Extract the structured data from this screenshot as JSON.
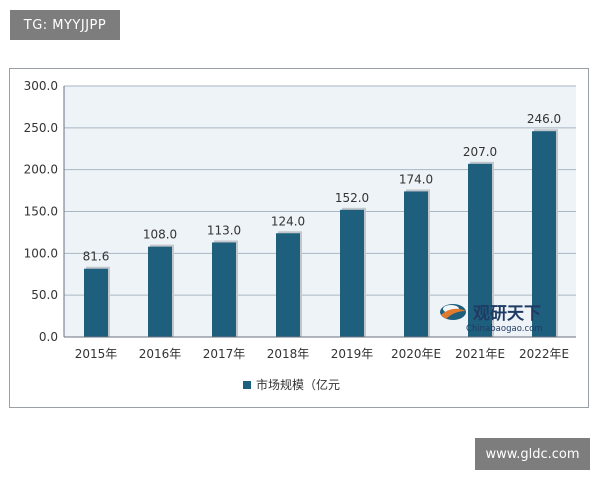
{
  "watermark_top": "TG: MYYJJPP",
  "watermark_bottom": "www.gldc.com",
  "logo": {
    "name": "观研天下",
    "url": "Chinabaogao.com"
  },
  "chart_data": {
    "type": "bar",
    "categories": [
      "2015年",
      "2016年",
      "2017年",
      "2018年",
      "2019年",
      "2020年E",
      "2021年E",
      "2022年E"
    ],
    "series": [
      {
        "name": "市场规模（亿元",
        "values": [
          81.6,
          108.0,
          113.0,
          124.0,
          152.0,
          174.0,
          207.0,
          246.0
        ]
      }
    ],
    "value_labels": [
      "81.6",
      "108.0",
      "113.0",
      "124.0",
      "152.0",
      "174.0",
      "207.0",
      "246.0"
    ],
    "yticks": [
      "0.0",
      "50.0",
      "100.0",
      "150.0",
      "200.0",
      "250.0",
      "300.0"
    ],
    "ylim": [
      0,
      300
    ],
    "grid": true,
    "legend_position": "bottom",
    "colors": {
      "bar": "#1f5f7e",
      "bar_shadow": "#c2c7cc",
      "grid": "#a9b6c4",
      "plot_bg": "#eef3f8",
      "axis": "#6b7280",
      "text": "#333333"
    }
  }
}
